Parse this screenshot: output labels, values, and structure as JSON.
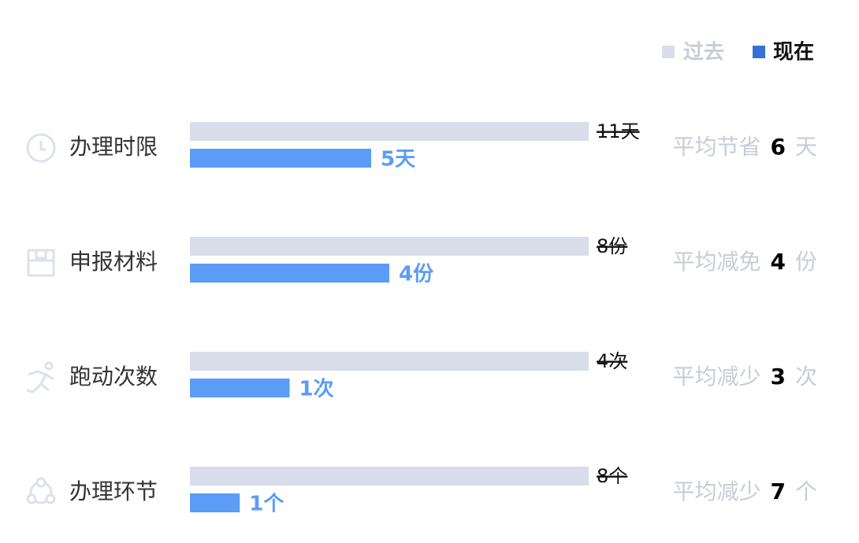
{
  "legend": [
    {
      "name": "过去",
      "color": "#d8dde9"
    },
    {
      "name": "现在",
      "color": "#3571d6"
    }
  ],
  "current_bar_color": "#5b9cf6",
  "rows": [
    {
      "label": "办理时限",
      "past": 11,
      "past_label": "11天",
      "current": 5,
      "current_label": "5天",
      "summary": "平均节省",
      "saved": 6,
      "unit": "天"
    },
    {
      "label": "申报材料",
      "past": 8,
      "past_label": "8份",
      "current": 4,
      "current_label": "4份",
      "summary": "平均减免",
      "saved": 4,
      "unit": "份"
    },
    {
      "label": "跑动次数",
      "past": 4,
      "past_label": "4次",
      "current": 1,
      "current_label": "1次",
      "summary": "平均减少",
      "saved": 3,
      "unit": "次"
    },
    {
      "label": "办理环节",
      "past": 8,
      "past_label": "8个",
      "current": 1,
      "current_label": "1个",
      "summary": "平均减少",
      "saved": 7,
      "unit": "个"
    }
  ]
}
